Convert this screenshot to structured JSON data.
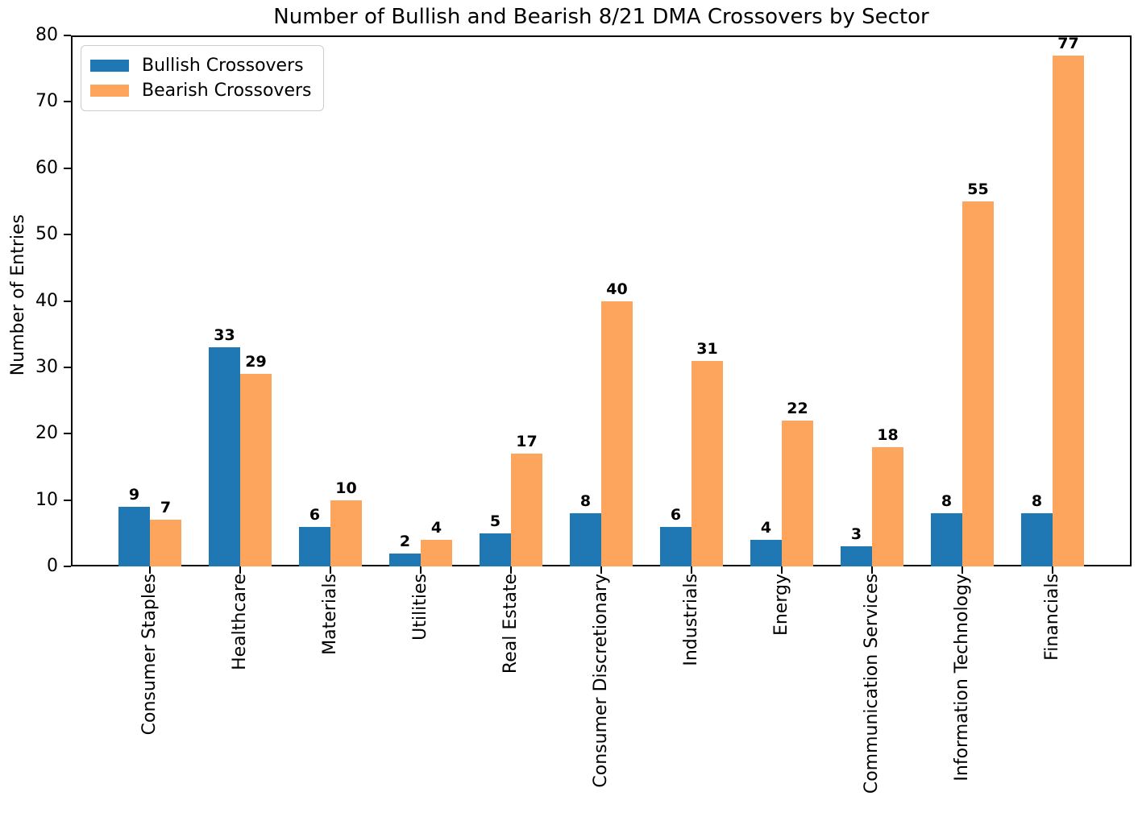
{
  "chart_data": {
    "type": "bar",
    "title": "Number of Bullish and Bearish 8/21 DMA Crossovers by Sector",
    "xlabel": "",
    "ylabel": "Number of Entries",
    "ylim": [
      0,
      80
    ],
    "yticks": [
      0,
      10,
      20,
      30,
      40,
      50,
      60,
      70,
      80
    ],
    "grid": false,
    "legend_position": "upper left",
    "bar_value_labels": true,
    "categories": [
      "Consumer Staples",
      "Healthcare",
      "Materials",
      "Utilities",
      "Real Estate",
      "Consumer Discretionary",
      "Industrials",
      "Energy",
      "Communication Services",
      "Information Technology",
      "Financials"
    ],
    "series": [
      {
        "name": "Bullish Crossovers",
        "color": "#1f77b4",
        "values": [
          9,
          33,
          6,
          2,
          5,
          8,
          6,
          4,
          3,
          8,
          8
        ]
      },
      {
        "name": "Bearish Crossovers",
        "color": "#fda55c",
        "values": [
          7,
          29,
          10,
          4,
          17,
          40,
          31,
          22,
          18,
          55,
          77
        ]
      }
    ],
    "axis_color": "#000000",
    "background_color": "#ffffff"
  }
}
